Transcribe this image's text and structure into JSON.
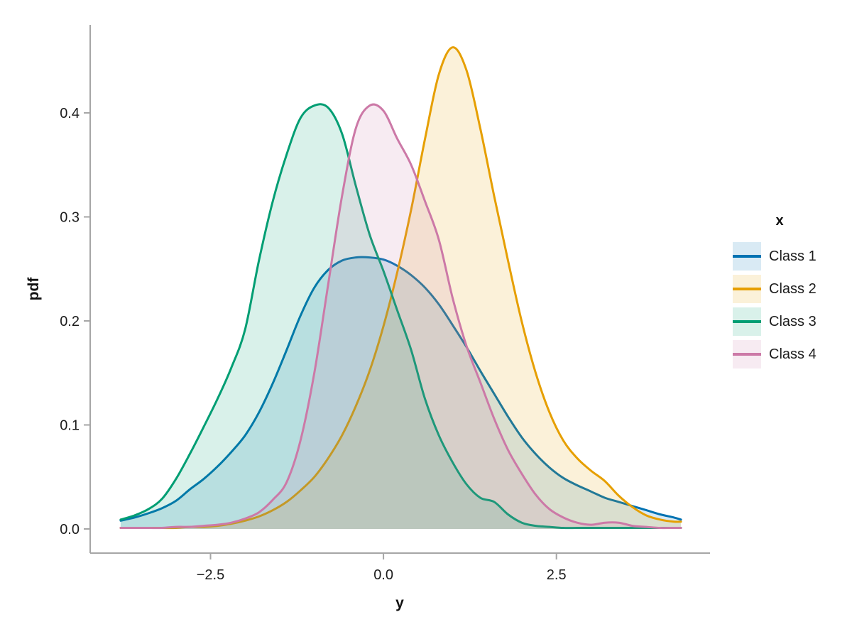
{
  "chart_data": {
    "type": "line",
    "variant": "kde-density-filled",
    "title": "",
    "xlabel": "y",
    "ylabel": "pdf",
    "legend_title": "x",
    "legend_position": "right",
    "grid": false,
    "xlim": [
      -4.24,
      4.72
    ],
    "ylim": [
      0,
      0.485
    ],
    "axis_color": "#a6a6a6",
    "text_color": "#1c1c1c",
    "fill_opacity": 0.15,
    "line_width": 3,
    "x_ticks": [
      {
        "value": -2.5,
        "label": "−2.5"
      },
      {
        "value": 0.0,
        "label": "0.0"
      },
      {
        "value": 2.5,
        "label": "2.5"
      }
    ],
    "y_ticks": [
      {
        "value": 0.0,
        "label": "0.0"
      },
      {
        "value": 0.1,
        "label": "0.1"
      },
      {
        "value": 0.2,
        "label": "0.2"
      },
      {
        "value": 0.3,
        "label": "0.3"
      },
      {
        "value": 0.4,
        "label": "0.4"
      }
    ],
    "x": [
      -3.8,
      -3.6,
      -3.4,
      -3.2,
      -3.0,
      -2.8,
      -2.6,
      -2.4,
      -2.2,
      -2.0,
      -1.8,
      -1.6,
      -1.4,
      -1.2,
      -1.0,
      -0.8,
      -0.6,
      -0.4,
      -0.2,
      0.0,
      0.2,
      0.4,
      0.6,
      0.8,
      1.0,
      1.2,
      1.4,
      1.6,
      1.8,
      2.0,
      2.2,
      2.4,
      2.6,
      2.8,
      3.0,
      3.2,
      3.4,
      3.6,
      3.8,
      4.0,
      4.2,
      4.3
    ],
    "series": [
      {
        "name": "Class 1",
        "color": "#0072B2",
        "values": [
          0.008,
          0.011,
          0.015,
          0.02,
          0.027,
          0.038,
          0.048,
          0.06,
          0.074,
          0.09,
          0.112,
          0.14,
          0.172,
          0.205,
          0.232,
          0.249,
          0.258,
          0.261,
          0.261,
          0.259,
          0.253,
          0.244,
          0.232,
          0.216,
          0.196,
          0.175,
          0.152,
          0.13,
          0.108,
          0.088,
          0.072,
          0.059,
          0.049,
          0.042,
          0.036,
          0.03,
          0.026,
          0.022,
          0.018,
          0.014,
          0.011,
          0.009
        ]
      },
      {
        "name": "Class 2",
        "color": "#E69F00",
        "values": [
          0.001,
          0.001,
          0.001,
          0.001,
          0.001,
          0.002,
          0.002,
          0.003,
          0.005,
          0.008,
          0.012,
          0.018,
          0.026,
          0.037,
          0.05,
          0.068,
          0.09,
          0.118,
          0.152,
          0.195,
          0.247,
          0.307,
          0.375,
          0.437,
          0.463,
          0.441,
          0.385,
          0.32,
          0.258,
          0.199,
          0.15,
          0.112,
          0.085,
          0.068,
          0.056,
          0.046,
          0.032,
          0.021,
          0.013,
          0.009,
          0.007,
          0.007
        ]
      },
      {
        "name": "Class 3",
        "color": "#009E73",
        "values": [
          0.009,
          0.013,
          0.019,
          0.029,
          0.048,
          0.072,
          0.098,
          0.125,
          0.155,
          0.192,
          0.258,
          0.315,
          0.36,
          0.395,
          0.407,
          0.405,
          0.38,
          0.33,
          0.283,
          0.248,
          0.21,
          0.172,
          0.125,
          0.09,
          0.064,
          0.043,
          0.03,
          0.026,
          0.014,
          0.006,
          0.003,
          0.002,
          0.001,
          0.001,
          0.001,
          0.001,
          0.001,
          0.001,
          0.001,
          0.001,
          0.001,
          0.001
        ]
      },
      {
        "name": "Class 4",
        "color": "#CC79A7",
        "values": [
          0.001,
          0.001,
          0.001,
          0.001,
          0.002,
          0.002,
          0.003,
          0.004,
          0.006,
          0.01,
          0.016,
          0.028,
          0.045,
          0.085,
          0.15,
          0.235,
          0.32,
          0.385,
          0.407,
          0.402,
          0.375,
          0.35,
          0.315,
          0.278,
          0.222,
          0.176,
          0.141,
          0.106,
          0.076,
          0.053,
          0.033,
          0.019,
          0.011,
          0.006,
          0.004,
          0.006,
          0.006,
          0.003,
          0.002,
          0.001,
          0.001,
          0.001
        ]
      }
    ]
  }
}
